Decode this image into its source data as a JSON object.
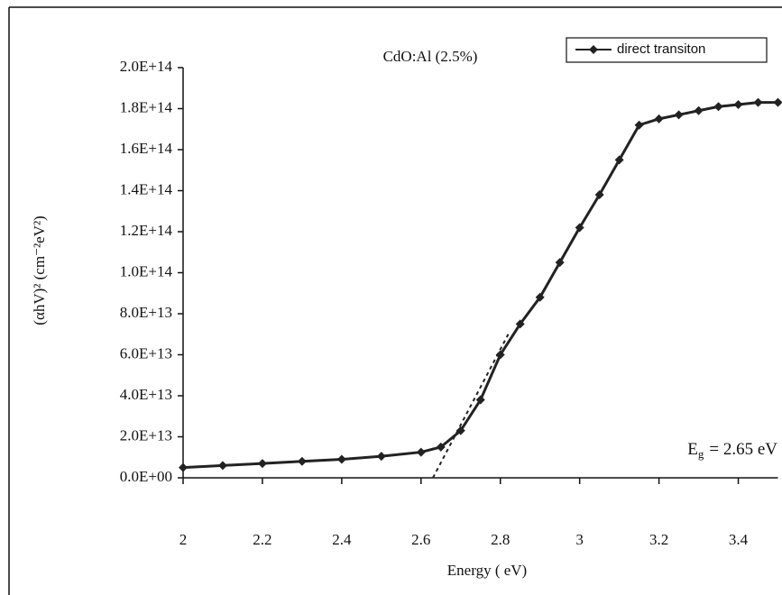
{
  "chart_data": {
    "type": "line",
    "title": "CdO:Al (2.5%)",
    "x_label": "Energy ( eV)",
    "y_label": "(αhV)² (cm⁻²eV²)",
    "annotation": {
      "symbol": "E",
      "subscript": "g",
      "text": "= 2.65 eV"
    },
    "legend_position": "upper right",
    "xlim": [
      2,
      3.5
    ],
    "ylim": [
      0,
      200000000000000
    ],
    "xticks": [
      2,
      2.2,
      2.4,
      2.6,
      2.8,
      3,
      3.2,
      3.4
    ],
    "yticks": [
      {
        "value": 0,
        "label": "0.0E+00"
      },
      {
        "value": 20000000000000,
        "label": "2.0E+13"
      },
      {
        "value": 40000000000000,
        "label": "4.0E+13"
      },
      {
        "value": 60000000000000,
        "label": "6.0E+13"
      },
      {
        "value": 80000000000000,
        "label": "8.0E+13"
      },
      {
        "value": 100000000000000,
        "label": "1.0E+14"
      },
      {
        "value": 120000000000000,
        "label": "1.2E+14"
      },
      {
        "value": 140000000000000,
        "label": "1.4E+14"
      },
      {
        "value": 160000000000000,
        "label": "1.6E+14"
      },
      {
        "value": 180000000000000,
        "label": "1.8E+14"
      },
      {
        "value": 200000000000000,
        "label": "2.0E+14"
      }
    ],
    "series": [
      {
        "name": "direct transiton",
        "color": "#222222",
        "x": [
          2,
          2.1,
          2.2,
          2.3,
          2.4,
          2.5,
          2.6,
          2.65,
          2.7,
          2.75,
          2.8,
          2.85,
          2.9,
          2.95,
          3,
          3.05,
          3.1,
          3.15,
          3.2,
          3.25,
          3.3,
          3.35,
          3.4,
          3.45,
          3.5
        ],
        "values": [
          5000000000000,
          6000000000000,
          7000000000000,
          8000000000000,
          9000000000000,
          10500000000000,
          12500000000000,
          15000000000000,
          23000000000000,
          38000000000000,
          60000000000000,
          75000000000000,
          88000000000000,
          105000000000000,
          122000000000000,
          138000000000000,
          155000000000000,
          172000000000000,
          175000000000000,
          177000000000000,
          179000000000000,
          181000000000000,
          182000000000000,
          183000000000000,
          183000000000000
        ]
      }
    ],
    "fit_line": {
      "color": "#222222",
      "x": [
        2.63,
        2.82
      ],
      "values": [
        0,
        70000000000000
      ]
    }
  }
}
